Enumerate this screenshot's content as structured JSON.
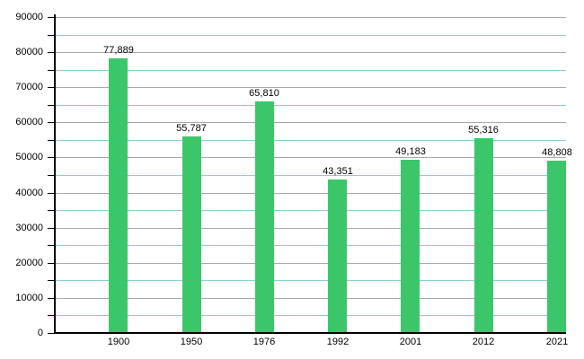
{
  "chart_data": {
    "type": "bar",
    "title": "",
    "xlabel": "",
    "ylabel": "",
    "categories": [
      "1900",
      "1950",
      "1976",
      "1992",
      "2001",
      "2012",
      "2021"
    ],
    "values": [
      77889,
      55787,
      65810,
      43351,
      49183,
      55316,
      48808
    ],
    "value_labels": [
      "77,889",
      "55,787",
      "65,810",
      "43,351",
      "49,183",
      "55,316",
      "48,808"
    ],
    "ylim": [
      0,
      90000
    ],
    "y_major_step": 10000,
    "y_minor_step": 5000,
    "y_tick_labels": [
      "0",
      "10000",
      "20000",
      "30000",
      "40000",
      "50000",
      "60000",
      "70000",
      "80000",
      "90000"
    ],
    "grid": "horizontal-only",
    "legend": null,
    "colors": {
      "bar": "#3bc769",
      "major_grid": "#a9a9a9",
      "minor_grid": "#8ccfcf",
      "axis": "#000000",
      "text": "#000000",
      "background": "#ffffff"
    }
  }
}
